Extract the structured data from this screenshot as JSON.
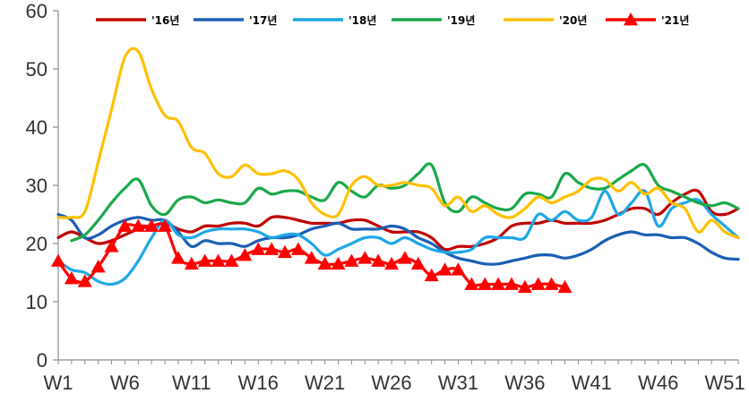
{
  "chart_data": {
    "type": "line",
    "title": "",
    "xlabel": "",
    "ylabel": "",
    "ylim": [
      0,
      60
    ],
    "yticks": [
      0,
      10,
      20,
      30,
      40,
      50,
      60
    ],
    "x_tick_labels": [
      "W1",
      "W6",
      "W11",
      "W16",
      "W21",
      "W26",
      "W31",
      "W36",
      "W41",
      "W46",
      "W51"
    ],
    "x_tick_weeks": [
      1,
      6,
      11,
      16,
      21,
      26,
      31,
      36,
      41,
      46,
      51
    ],
    "week_range": [
      1,
      52
    ],
    "grid": false,
    "legend_position": "top",
    "series": [
      {
        "name": "'16년",
        "color": "#c00000",
        "marker": "none",
        "x": [
          1,
          2,
          3,
          4,
          5,
          6,
          7,
          8,
          9,
          10,
          11,
          12,
          13,
          14,
          15,
          16,
          17,
          18,
          19,
          20,
          21,
          22,
          23,
          24,
          25,
          26,
          27,
          28,
          29,
          30,
          31,
          32,
          33,
          34,
          35,
          36,
          37,
          38,
          39,
          40,
          41,
          42,
          43,
          44,
          45,
          46,
          47,
          48,
          49,
          50,
          51,
          52
        ],
        "y": [
          21,
          22,
          21,
          20,
          20.5,
          21.5,
          22.5,
          23,
          23.5,
          22.5,
          22,
          23,
          23,
          23.5,
          23.5,
          23,
          24.5,
          24.5,
          24,
          23.5,
          23.5,
          23.5,
          24,
          24,
          23,
          22,
          22,
          22,
          21,
          19,
          19.5,
          19.5,
          20,
          21,
          23,
          23.5,
          23.5,
          24,
          23.5,
          23.5,
          23.5,
          24,
          25,
          26,
          26,
          25,
          27,
          28.5,
          29,
          25.5,
          25,
          26
        ]
      },
      {
        "name": "'17년",
        "color": "#1a5fb4",
        "marker": "none",
        "x": [
          1,
          2,
          3,
          4,
          5,
          6,
          7,
          8,
          9,
          10,
          11,
          12,
          13,
          14,
          15,
          16,
          17,
          18,
          19,
          20,
          21,
          22,
          23,
          24,
          25,
          26,
          27,
          28,
          29,
          30,
          31,
          32,
          33,
          34,
          35,
          36,
          37,
          38,
          39,
          40,
          41,
          42,
          43,
          44,
          45,
          46,
          47,
          48,
          49,
          50,
          51,
          52
        ],
        "y": [
          25,
          24,
          21,
          21.5,
          23,
          24,
          24.5,
          24,
          24,
          22,
          19.5,
          20.5,
          20,
          20,
          19.5,
          20.5,
          21,
          21,
          21.5,
          22.5,
          23,
          23.5,
          22.5,
          22.5,
          22.5,
          23,
          22.5,
          21,
          20,
          18.5,
          17.5,
          17,
          16.5,
          16.5,
          17,
          17.5,
          18,
          18,
          17.5,
          18,
          19,
          20.5,
          21.5,
          22,
          21.5,
          21.5,
          21,
          21,
          20,
          18.5,
          17.5,
          17.3
        ]
      },
      {
        "name": "'18년",
        "color": "#1ea7e8",
        "marker": "none",
        "x": [
          1,
          2,
          3,
          4,
          5,
          6,
          7,
          8,
          9,
          10,
          11,
          12,
          13,
          14,
          15,
          16,
          17,
          18,
          19,
          20,
          21,
          22,
          23,
          24,
          25,
          26,
          27,
          28,
          29,
          30,
          31,
          32,
          33,
          34,
          35,
          36,
          37,
          38,
          39,
          40,
          41,
          42,
          43,
          44,
          45,
          46,
          47,
          48,
          49,
          50,
          51,
          52
        ],
        "y": [
          17,
          15.5,
          15,
          13.5,
          13,
          14,
          17,
          21,
          24,
          21.5,
          21,
          22,
          22.5,
          22.5,
          22.5,
          22,
          21,
          21.5,
          21.5,
          20,
          18,
          19,
          20,
          21,
          21,
          20,
          21,
          20,
          19,
          18.5,
          18.5,
          19,
          21,
          21,
          21,
          21,
          25,
          24,
          25.5,
          24,
          24.5,
          29,
          25,
          27,
          29,
          23,
          26,
          27,
          27.5,
          25,
          23,
          21
        ]
      },
      {
        "name": "'19년",
        "color": "#1aa84a",
        "marker": "none",
        "x": [
          2,
          3,
          4,
          5,
          6,
          7,
          8,
          9,
          10,
          11,
          12,
          13,
          14,
          15,
          16,
          17,
          18,
          19,
          20,
          21,
          22,
          23,
          24,
          25,
          26,
          27,
          28,
          29,
          30,
          31,
          32,
          33,
          34,
          35,
          36,
          37,
          38,
          39,
          40,
          41,
          42,
          43,
          44,
          45,
          46,
          47,
          48,
          49,
          50,
          51,
          52
        ],
        "y": [
          20.5,
          21.5,
          24,
          27,
          29.5,
          31,
          26.5,
          25,
          27.5,
          28,
          27,
          27.5,
          27,
          27,
          29.5,
          28.5,
          29,
          29,
          28,
          27.5,
          30.5,
          29,
          28,
          30,
          29.5,
          30,
          32,
          33.5,
          27,
          25.5,
          28,
          27,
          26,
          26,
          28.5,
          28.5,
          28,
          32,
          30.5,
          29.5,
          29.5,
          31,
          32.5,
          33.5,
          30,
          29,
          28,
          27,
          26.5,
          27,
          26
        ]
      },
      {
        "name": "'20년",
        "color": "#ffc000",
        "marker": "none",
        "x": [
          1,
          2,
          3,
          4,
          5,
          6,
          7,
          8,
          9,
          10,
          11,
          12,
          13,
          14,
          15,
          16,
          17,
          18,
          19,
          20,
          21,
          22,
          23,
          24,
          25,
          26,
          27,
          28,
          29,
          30,
          31,
          32,
          33,
          34,
          35,
          36,
          37,
          38,
          39,
          40,
          41,
          42,
          43,
          44,
          45,
          46,
          47,
          48,
          49,
          50,
          51,
          52
        ],
        "y": [
          24.5,
          24.5,
          25.5,
          34,
          43,
          52,
          53,
          46.5,
          42,
          41,
          36.5,
          35.5,
          32,
          31.5,
          33.5,
          32,
          32,
          32.5,
          31,
          27,
          25,
          25,
          30,
          31.5,
          30,
          30,
          30.5,
          30,
          29.5,
          26.5,
          28,
          25.5,
          26.5,
          25,
          24.5,
          26,
          28,
          27,
          28,
          29,
          31,
          31,
          29,
          30.5,
          28.5,
          29.5,
          27,
          26,
          22,
          24,
          22,
          21
        ]
      },
      {
        "name": "'21년",
        "color": "#ff0000",
        "marker": "triangle",
        "x": [
          1,
          2,
          3,
          4,
          5,
          6,
          7,
          8,
          9,
          10,
          11,
          12,
          13,
          14,
          15,
          16,
          17,
          18,
          19,
          20,
          21,
          22,
          23,
          24,
          25,
          26,
          27,
          28,
          29,
          30,
          31,
          32,
          33,
          34,
          35,
          36,
          37,
          38,
          39
        ],
        "y": [
          17,
          14,
          13.5,
          16,
          19.5,
          23,
          23,
          23,
          23,
          17.5,
          16.5,
          17,
          17,
          17,
          18,
          19,
          19,
          18.5,
          19,
          17.5,
          16.5,
          16.5,
          17,
          17.5,
          17,
          16.5,
          17.5,
          16.5,
          14.5,
          15.5,
          15.5,
          13,
          13,
          13,
          13,
          12.5,
          13,
          13,
          12.5
        ]
      }
    ]
  }
}
